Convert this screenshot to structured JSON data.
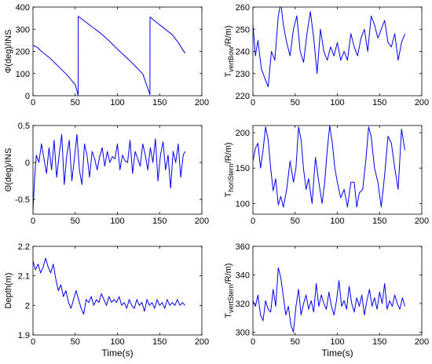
{
  "colors": {
    "series": "#0000ee",
    "axes": "#000000",
    "background": "#ffffff"
  },
  "chart_data": [
    {
      "type": "line",
      "ylabel": "Φ(deg)/INS",
      "xlabel": "",
      "xlim": [
        0,
        200
      ],
      "ylim": [
        0,
        400
      ],
      "xticks": [
        0,
        50,
        100,
        150,
        200
      ],
      "yticks": [
        0,
        100,
        200,
        300,
        400
      ],
      "grid": false,
      "series": [
        {
          "x": [
            0,
            5,
            10,
            20,
            30,
            40,
            50,
            53.5,
            53.6,
            60,
            70,
            80,
            90,
            100,
            110,
            120,
            130,
            138.5,
            138.6,
            145,
            155,
            165,
            172,
            180
          ],
          "y": [
            228,
            218,
            200,
            170,
            132,
            95,
            50,
            2,
            358,
            340,
            310,
            282,
            248,
            210,
            175,
            138,
            98,
            5,
            355,
            335,
            305,
            275,
            240,
            192
          ]
        }
      ]
    },
    {
      "type": "line",
      "ylabel": "T_vertBow/R/m)",
      "xlabel": "",
      "xlim": [
        0,
        200
      ],
      "ylim": [
        220,
        260
      ],
      "xticks": [
        0,
        50,
        100,
        150,
        200
      ],
      "yticks": [
        220,
        230,
        240,
        250,
        260
      ],
      "grid": false,
      "series": [
        {
          "x": [
            0,
            3,
            6,
            10,
            14,
            18,
            22,
            26,
            30,
            33,
            36,
            40,
            44,
            48,
            52,
            56,
            60,
            64,
            68,
            72,
            76,
            80,
            84,
            88,
            92,
            96,
            100,
            104,
            108,
            112,
            116,
            120,
            124,
            128,
            132,
            136,
            140,
            144,
            148,
            152,
            156,
            160,
            164,
            168,
            172,
            176,
            180
          ],
          "y": [
            252,
            238,
            245,
            232,
            228,
            224,
            240,
            236,
            256,
            262,
            252,
            244,
            238,
            250,
            256,
            240,
            235,
            248,
            258,
            246,
            230,
            250,
            240,
            236,
            242,
            238,
            244,
            236,
            240,
            236,
            248,
            242,
            238,
            246,
            250,
            240,
            256,
            252,
            246,
            250,
            254,
            244,
            242,
            248,
            236,
            244,
            248
          ]
        }
      ]
    },
    {
      "type": "line",
      "ylabel": "Θ(deg)/INS",
      "xlabel": "",
      "xlim": [
        0,
        200
      ],
      "ylim": [
        -0.7,
        0.5
      ],
      "xticks": [
        0,
        50,
        100,
        150,
        200
      ],
      "yticks": [
        -0.5,
        0,
        0.5
      ],
      "grid": false,
      "series": [
        {
          "x": [
            0,
            2,
            4,
            7,
            10,
            13,
            16,
            19,
            22,
            25,
            28,
            31,
            34,
            37,
            40,
            43,
            46,
            49,
            52,
            55,
            58,
            61,
            64,
            67,
            70,
            73,
            76,
            79,
            82,
            85,
            88,
            91,
            94,
            97,
            100,
            103,
            106,
            109,
            112,
            115,
            118,
            121,
            124,
            127,
            130,
            133,
            136,
            139,
            142,
            145,
            148,
            151,
            154,
            157,
            160,
            163,
            166,
            169,
            172,
            175,
            178,
            180
          ],
          "y": [
            -0.65,
            -0.2,
            0.1,
            0.0,
            0.25,
            0.05,
            -0.15,
            0.2,
            -0.1,
            0.3,
            -0.2,
            0.1,
            0.38,
            -0.3,
            0.1,
            0.3,
            -0.25,
            0.05,
            0.38,
            -0.1,
            -0.3,
            0.25,
            0.1,
            -0.2,
            0.15,
            0.05,
            -0.1,
            0.08,
            0.2,
            -0.05,
            0.15,
            0.0,
            0.08,
            0.05,
            0.25,
            -0.1,
            0.1,
            0.02,
            0.0,
            0.3,
            -0.15,
            0.15,
            0.05,
            -0.05,
            0.25,
            0.1,
            -0.1,
            0.2,
            0.0,
            0.32,
            -0.25,
            0.1,
            0.28,
            -0.1,
            0.1,
            -0.35,
            0.15,
            0.0,
            0.25,
            -0.2,
            0.1,
            0.15
          ]
        }
      ]
    },
    {
      "type": "line",
      "ylabel": "T_horiStern/R/m)",
      "xlabel": "",
      "xlim": [
        0,
        200
      ],
      "ylim": [
        85,
        210
      ],
      "xticks": [
        0,
        50,
        100,
        150,
        200
      ],
      "yticks": [
        100,
        150,
        200
      ],
      "grid": false,
      "series": [
        {
          "x": [
            0,
            3,
            6,
            9,
            12,
            15,
            18,
            21,
            24,
            27,
            30,
            33,
            36,
            40,
            44,
            48,
            51,
            54,
            57,
            60,
            63,
            66,
            70,
            74,
            78,
            82,
            85,
            88,
            91,
            94,
            97,
            100,
            104,
            108,
            112,
            116,
            120,
            123,
            126,
            130,
            134,
            137,
            140,
            144,
            148,
            152,
            156,
            160,
            164,
            168,
            172,
            176,
            180
          ],
          "y": [
            160,
            178,
            185,
            150,
            175,
            208,
            190,
            150,
            118,
            135,
            98,
            110,
            95,
            120,
            160,
            130,
            150,
            208,
            190,
            148,
            120,
            135,
            100,
            165,
            130,
            100,
            130,
            175,
            210,
            185,
            150,
            130,
            108,
            120,
            95,
            130,
            130,
            95,
            115,
            120,
            165,
            208,
            195,
            150,
            130,
            95,
            140,
            195,
            185,
            150,
            120,
            205,
            175
          ]
        }
      ]
    },
    {
      "type": "line",
      "ylabel": "Depth(m)",
      "xlabel": "Time(s)",
      "xlim": [
        0,
        200
      ],
      "ylim": [
        1.9,
        2.2
      ],
      "xticks": [
        0,
        50,
        100,
        150,
        200
      ],
      "yticks": [
        1.9,
        2,
        2.1,
        2.2
      ],
      "grid": false,
      "series": [
        {
          "x": [
            0,
            3,
            6,
            9,
            12,
            15,
            18,
            21,
            24,
            27,
            30,
            33,
            36,
            39,
            42,
            45,
            48,
            51,
            54,
            57,
            60,
            63,
            66,
            69,
            72,
            75,
            78,
            81,
            84,
            87,
            90,
            93,
            96,
            99,
            102,
            105,
            108,
            111,
            114,
            117,
            120,
            123,
            126,
            129,
            132,
            135,
            138,
            141,
            144,
            147,
            150,
            153,
            156,
            159,
            162,
            165,
            168,
            171,
            174,
            177,
            180
          ],
          "y": [
            2.15,
            2.12,
            2.14,
            2.11,
            2.13,
            2.16,
            2.13,
            2.11,
            2.14,
            2.09,
            2.05,
            2.07,
            2.03,
            2.05,
            2.01,
            1.99,
            2.02,
            2.05,
            2.02,
            1.99,
            1.97,
            2.02,
            2.01,
            2.03,
            2.0,
            2.02,
            2.01,
            2.04,
            2.02,
            2.0,
            2.03,
            2.01,
            2.02,
            2.01,
            2.03,
            2.0,
            2.01,
            1.99,
            2.02,
            2.0,
            1.99,
            2.02,
            2.0,
            2.01,
            1.98,
            2.02,
            2.0,
            2.01,
            1.99,
            2.02,
            2.0,
            2.01,
            1.99,
            2.02,
            2.0,
            2.01,
            2.0,
            2.02,
            2.0,
            2.01,
            2.0
          ]
        }
      ]
    },
    {
      "type": "line",
      "ylabel": "T_vertStern/R/m)",
      "xlabel": "Time(s)",
      "xlim": [
        0,
        200
      ],
      "ylim": [
        298,
        360
      ],
      "xticks": [
        0,
        50,
        100,
        150,
        200
      ],
      "yticks": [
        300,
        320,
        340,
        360
      ],
      "grid": false,
      "series": [
        {
          "x": [
            0,
            3,
            6,
            9,
            12,
            15,
            18,
            21,
            24,
            27,
            30,
            33,
            36,
            39,
            42,
            45,
            48,
            51,
            54,
            57,
            60,
            63,
            66,
            69,
            72,
            75,
            78,
            81,
            84,
            87,
            90,
            93,
            96,
            99,
            102,
            105,
            108,
            111,
            114,
            117,
            120,
            123,
            126,
            129,
            132,
            135,
            138,
            141,
            144,
            147,
            150,
            153,
            156,
            159,
            162,
            165,
            168,
            171,
            174,
            177,
            180
          ],
          "y": [
            322,
            318,
            326,
            312,
            308,
            322,
            316,
            314,
            330,
            318,
            345,
            338,
            325,
            312,
            318,
            305,
            300,
            318,
            330,
            312,
            320,
            326,
            316,
            322,
            314,
            334,
            318,
            326,
            320,
            316,
            328,
            318,
            312,
            322,
            336,
            318,
            322,
            316,
            332,
            320,
            314,
            324,
            318,
            326,
            312,
            322,
            330,
            318,
            324,
            316,
            328,
            320,
            334,
            316,
            322,
            318,
            326,
            320,
            316,
            324,
            318
          ]
        }
      ]
    }
  ]
}
